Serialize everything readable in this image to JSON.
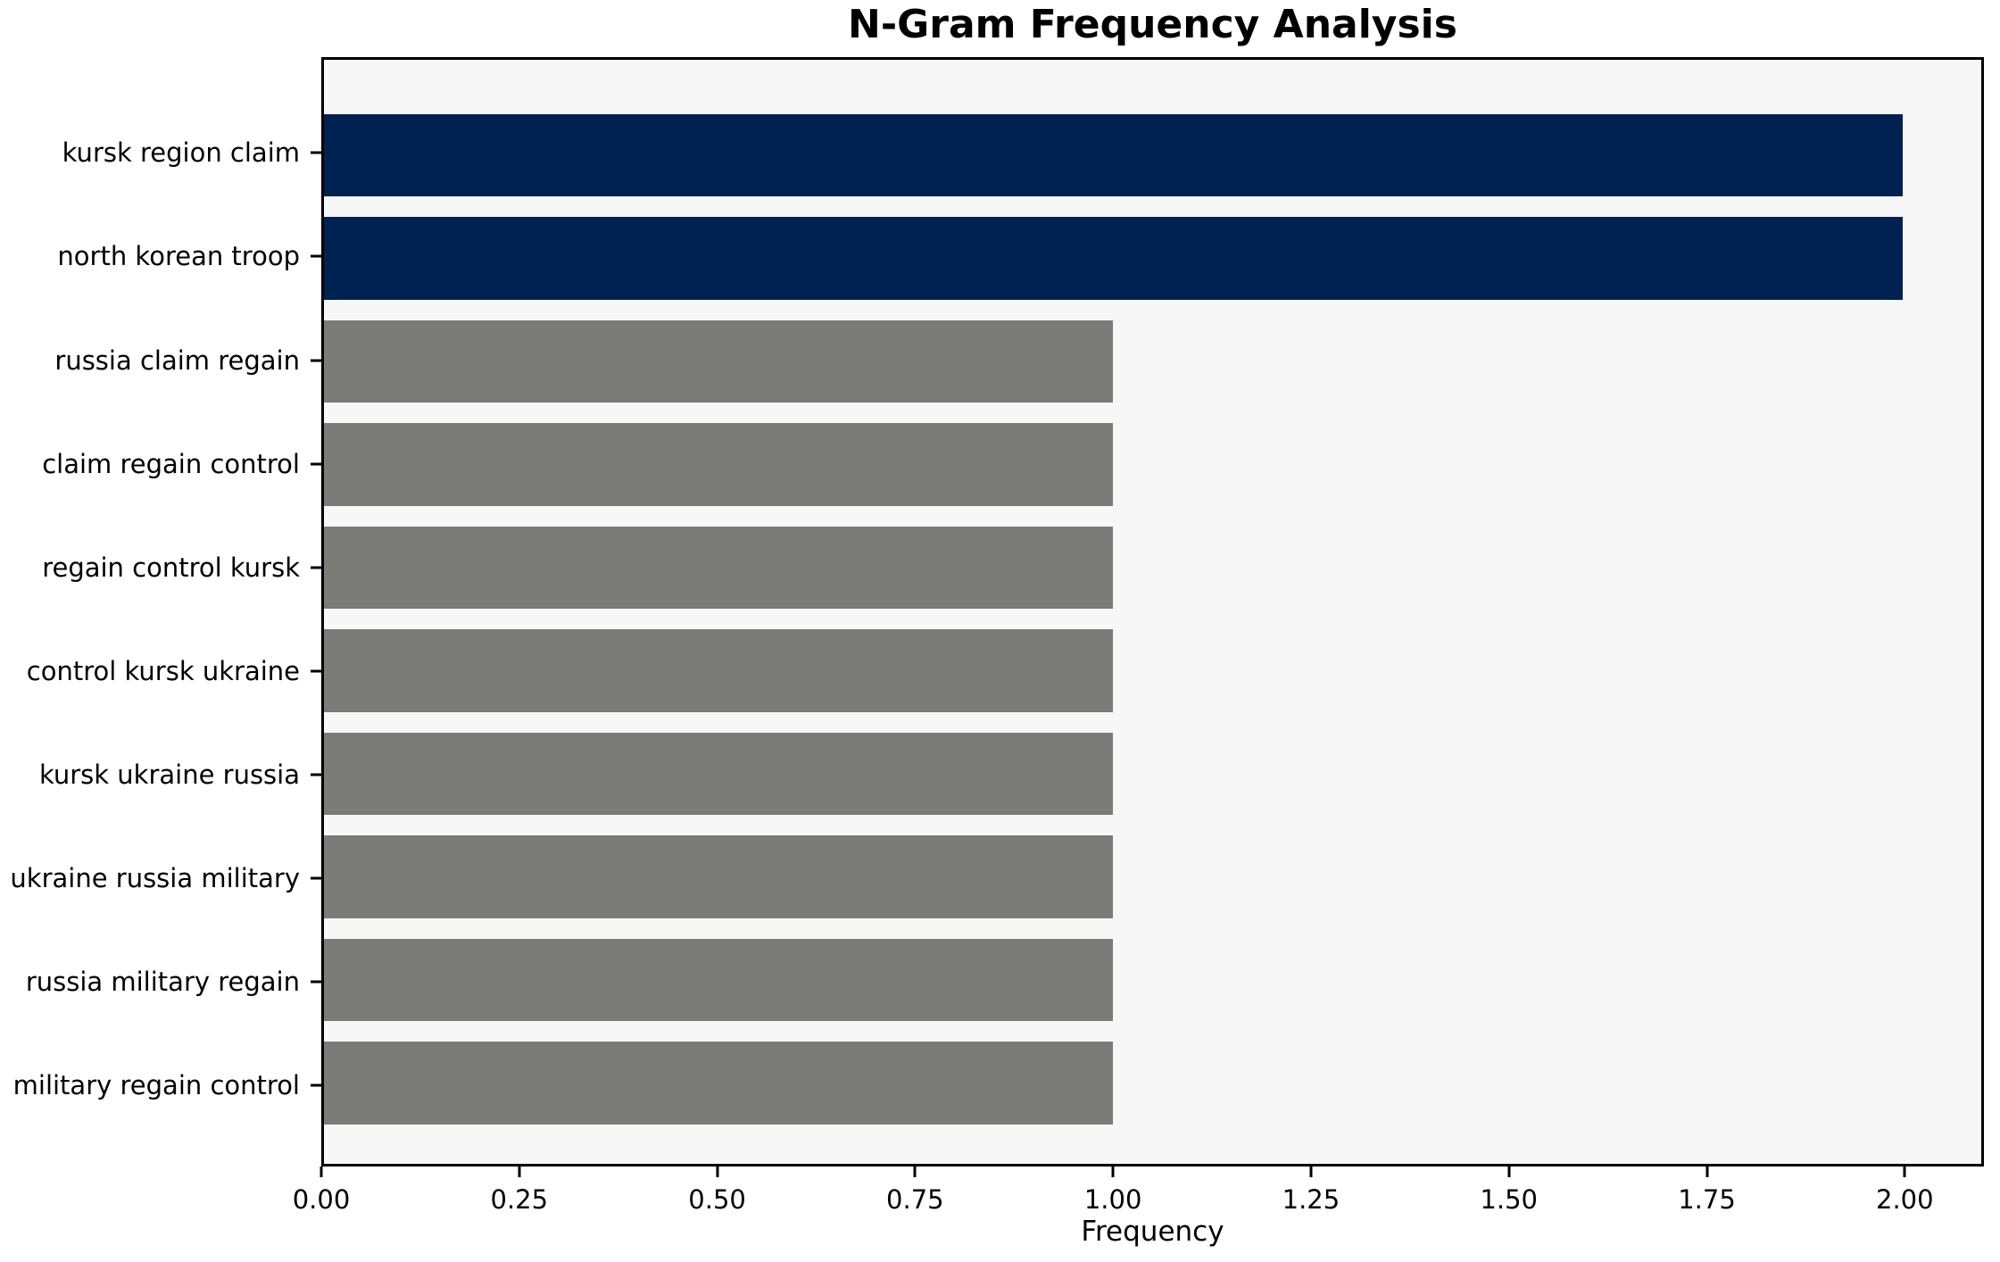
{
  "chart_data": {
    "type": "bar",
    "orientation": "horizontal",
    "title": "N-Gram Frequency Analysis",
    "xlabel": "Frequency",
    "ylabel": "",
    "categories": [
      "kursk region claim",
      "north korean troop",
      "russia claim regain",
      "claim regain control",
      "regain control kursk",
      "control kursk ukraine",
      "kursk ukraine russia",
      "ukraine russia military",
      "russia military regain",
      "military regain control"
    ],
    "values": [
      2,
      2,
      1,
      1,
      1,
      1,
      1,
      1,
      1,
      1
    ],
    "bar_colors": [
      "#002250",
      "#002250",
      "#7b7b77",
      "#7b7b77",
      "#7b7b77",
      "#7b7b77",
      "#7b7b77",
      "#7b7b77",
      "#7b7b77",
      "#7b7b77"
    ],
    "xlim": [
      0,
      2.1
    ],
    "xticks": [
      0,
      0.25,
      0.5,
      0.75,
      1.0,
      1.25,
      1.5,
      1.75,
      2.0
    ],
    "xtick_labels": [
      "0.00",
      "0.25",
      "0.50",
      "0.75",
      "1.00",
      "1.25",
      "1.50",
      "1.75",
      "2.00"
    ],
    "grid": false,
    "legend": "none",
    "colors": {
      "highlight_bar": "#002250",
      "default_bar": "#7b7b77",
      "plot_background": "#f7f7f7",
      "figure_background": "#ffffff",
      "spine": "#000000",
      "text": "#000000"
    }
  }
}
